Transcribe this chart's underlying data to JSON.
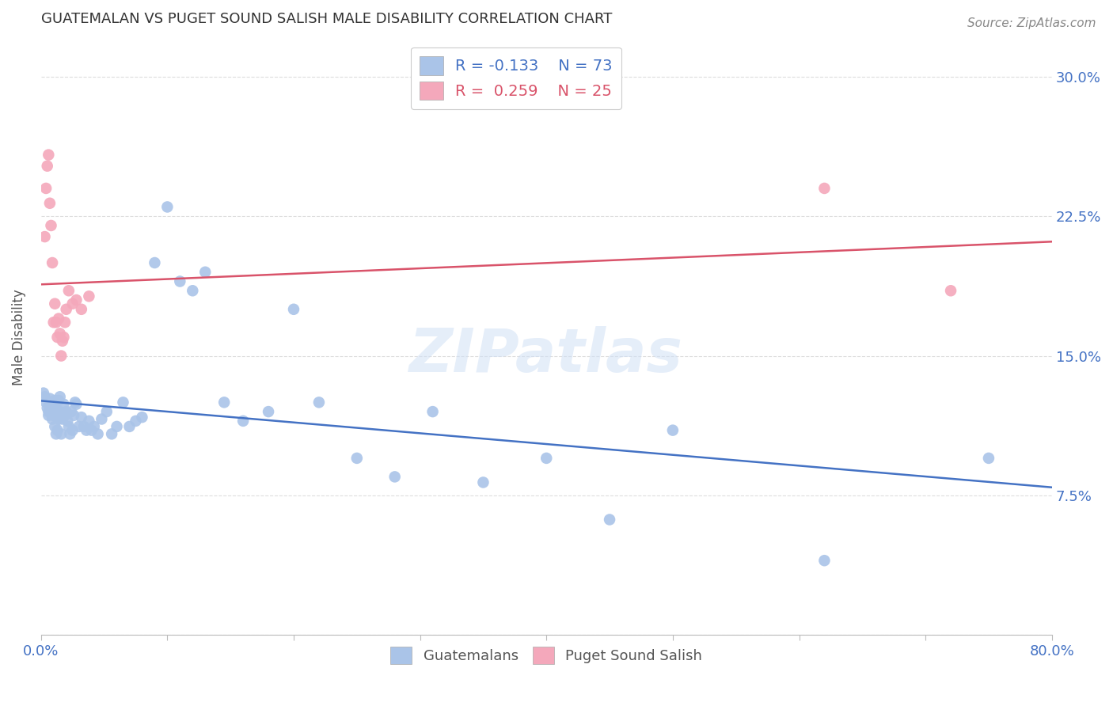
{
  "title": "GUATEMALAN VS PUGET SOUND SALISH MALE DISABILITY CORRELATION CHART",
  "source": "Source: ZipAtlas.com",
  "ylabel": "Male Disability",
  "xlim": [
    0.0,
    0.8
  ],
  "ylim": [
    0.0,
    0.32
  ],
  "x_ticks": [
    0.0,
    0.1,
    0.2,
    0.3,
    0.4,
    0.5,
    0.6,
    0.7,
    0.8
  ],
  "x_tick_labels": [
    "0.0%",
    "",
    "",
    "",
    "",
    "",
    "",
    "",
    "80.0%"
  ],
  "y_ticks": [
    0.0,
    0.075,
    0.15,
    0.225,
    0.3
  ],
  "y_tick_labels": [
    "",
    "7.5%",
    "15.0%",
    "22.5%",
    "30.0%"
  ],
  "guatemalan_color": "#aac4e8",
  "puget_color": "#f4a8bb",
  "guatemalan_line_color": "#4472c4",
  "puget_line_color": "#d9536a",
  "watermark": "ZIPatlas",
  "guatemalan_x": [
    0.002,
    0.003,
    0.004,
    0.005,
    0.006,
    0.006,
    0.007,
    0.007,
    0.008,
    0.008,
    0.009,
    0.009,
    0.01,
    0.01,
    0.011,
    0.011,
    0.012,
    0.012,
    0.013,
    0.013,
    0.014,
    0.014,
    0.015,
    0.015,
    0.016,
    0.016,
    0.017,
    0.018,
    0.019,
    0.02,
    0.021,
    0.022,
    0.023,
    0.024,
    0.025,
    0.026,
    0.027,
    0.028,
    0.03,
    0.032,
    0.034,
    0.036,
    0.038,
    0.04,
    0.042,
    0.045,
    0.048,
    0.052,
    0.056,
    0.06,
    0.065,
    0.07,
    0.075,
    0.08,
    0.09,
    0.1,
    0.11,
    0.12,
    0.13,
    0.145,
    0.16,
    0.18,
    0.2,
    0.22,
    0.25,
    0.28,
    0.31,
    0.35,
    0.4,
    0.45,
    0.5,
    0.62,
    0.75
  ],
  "guatemalan_y": [
    0.13,
    0.128,
    0.125,
    0.122,
    0.12,
    0.118,
    0.127,
    0.123,
    0.122,
    0.119,
    0.12,
    0.116,
    0.124,
    0.118,
    0.126,
    0.112,
    0.12,
    0.108,
    0.118,
    0.11,
    0.126,
    0.116,
    0.128,
    0.12,
    0.118,
    0.108,
    0.116,
    0.124,
    0.118,
    0.12,
    0.115,
    0.112,
    0.108,
    0.12,
    0.11,
    0.118,
    0.125,
    0.124,
    0.112,
    0.117,
    0.112,
    0.11,
    0.115,
    0.11,
    0.112,
    0.108,
    0.116,
    0.12,
    0.108,
    0.112,
    0.125,
    0.112,
    0.115,
    0.117,
    0.2,
    0.23,
    0.19,
    0.185,
    0.195,
    0.125,
    0.115,
    0.12,
    0.175,
    0.125,
    0.095,
    0.085,
    0.12,
    0.082,
    0.095,
    0.062,
    0.11,
    0.04,
    0.095
  ],
  "puget_x": [
    0.003,
    0.004,
    0.005,
    0.006,
    0.007,
    0.008,
    0.009,
    0.01,
    0.011,
    0.012,
    0.013,
    0.014,
    0.015,
    0.016,
    0.017,
    0.018,
    0.019,
    0.02,
    0.022,
    0.025,
    0.028,
    0.032,
    0.038,
    0.62,
    0.72
  ],
  "puget_y": [
    0.214,
    0.24,
    0.252,
    0.258,
    0.232,
    0.22,
    0.2,
    0.168,
    0.178,
    0.168,
    0.16,
    0.17,
    0.162,
    0.15,
    0.158,
    0.16,
    0.168,
    0.175,
    0.185,
    0.178,
    0.18,
    0.175,
    0.182,
    0.24,
    0.185
  ],
  "guatemalan_trend": [
    -0.133,
    73
  ],
  "puget_trend": [
    0.259,
    25
  ]
}
